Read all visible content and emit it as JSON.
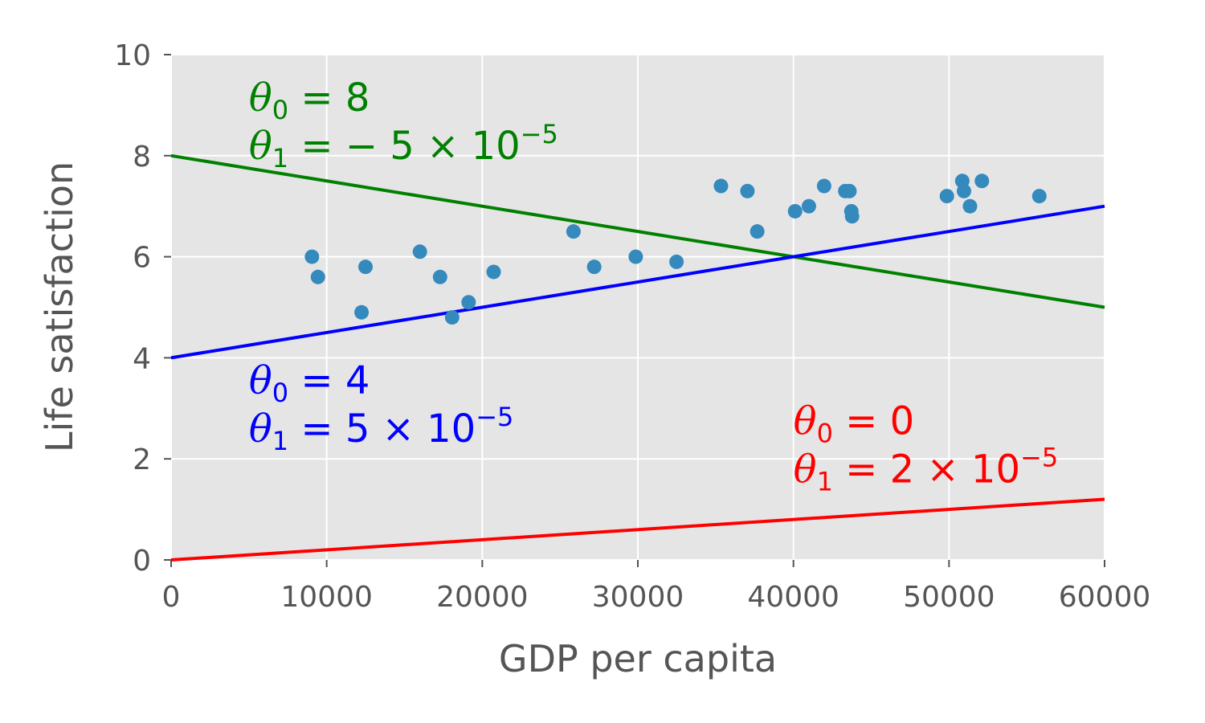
{
  "chart_data": {
    "type": "scatter",
    "xlabel": "GDP per capita",
    "ylabel": "Life satisfaction",
    "xlim": [
      0,
      60000
    ],
    "ylim": [
      0,
      10
    ],
    "xticks": [
      "0",
      "10000",
      "20000",
      "30000",
      "40000",
      "50000",
      "60000"
    ],
    "yticks": [
      "0",
      "2",
      "4",
      "6",
      "8",
      "10"
    ],
    "grid": true,
    "background": "#e5e5e5",
    "points_color": "#348abd",
    "points": [
      {
        "x": 9054,
        "y": 6.0
      },
      {
        "x": 9437,
        "y": 5.6
      },
      {
        "x": 12240,
        "y": 4.9
      },
      {
        "x": 12495,
        "y": 5.8
      },
      {
        "x": 15991,
        "y": 6.1
      },
      {
        "x": 17288,
        "y": 5.6
      },
      {
        "x": 18064,
        "y": 4.8
      },
      {
        "x": 19121,
        "y": 5.1
      },
      {
        "x": 20732,
        "y": 5.7
      },
      {
        "x": 25864,
        "y": 6.5
      },
      {
        "x": 27195,
        "y": 5.8
      },
      {
        "x": 29866,
        "y": 6.0
      },
      {
        "x": 32485,
        "y": 5.9
      },
      {
        "x": 35343,
        "y": 7.4
      },
      {
        "x": 37044,
        "y": 7.3
      },
      {
        "x": 37675,
        "y": 6.5
      },
      {
        "x": 40106,
        "y": 6.9
      },
      {
        "x": 40996,
        "y": 7.0
      },
      {
        "x": 41973,
        "y": 7.4
      },
      {
        "x": 43331,
        "y": 7.3
      },
      {
        "x": 43603,
        "y": 7.3
      },
      {
        "x": 43724,
        "y": 6.9
      },
      {
        "x": 43770,
        "y": 6.8
      },
      {
        "x": 49866,
        "y": 7.2
      },
      {
        "x": 50854,
        "y": 7.5
      },
      {
        "x": 50962,
        "y": 7.3
      },
      {
        "x": 51350,
        "y": 7.0
      },
      {
        "x": 52114,
        "y": 7.5
      },
      {
        "x": 55805,
        "y": 7.2
      }
    ],
    "lines": [
      {
        "theta0": 8,
        "theta1": -5e-05,
        "color": "#008000",
        "label_theta0": "8",
        "label_theta1": "− 5 × 10",
        "label_exp": "−5",
        "label_x": 5000,
        "label_y": 8.7
      },
      {
        "theta0": 4,
        "theta1": 5e-05,
        "color": "#0000ff",
        "label_theta0": "4",
        "label_theta1": "5 × 10",
        "label_exp": "−5",
        "label_x": 5000,
        "label_y": 3.1
      },
      {
        "theta0": 0,
        "theta1": 2e-05,
        "color": "#ff0000",
        "label_theta0": "0",
        "label_theta1": "2 × 10",
        "label_exp": "−5",
        "label_x": 40000,
        "label_y": 2.3
      }
    ]
  }
}
